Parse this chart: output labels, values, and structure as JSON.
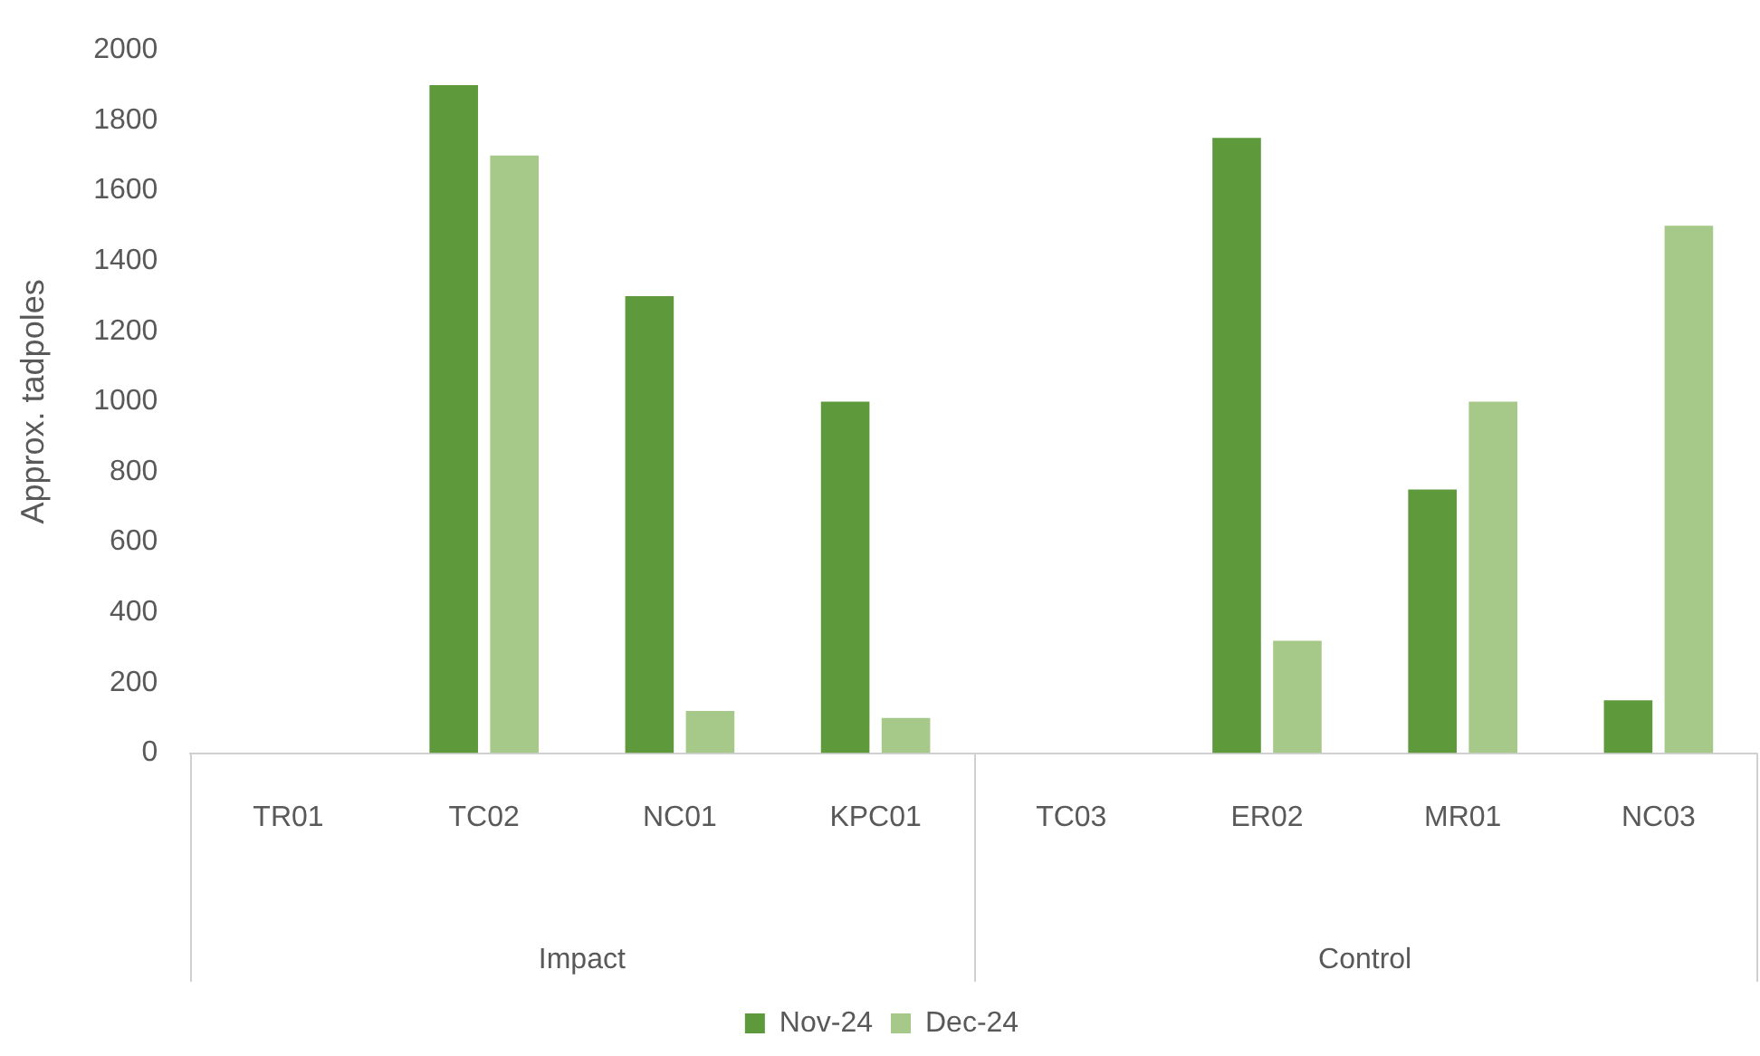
{
  "chart_data": {
    "type": "bar",
    "ylabel": "Approx. tadpoles",
    "categories": [
      "TR01",
      "TC02",
      "NC01",
      "KPC01",
      "TC03",
      "ER02",
      "MR01",
      "NC03"
    ],
    "series": [
      {
        "name": "Nov-24",
        "color": "#5e9a3c",
        "values": [
          0,
          1900,
          1300,
          1000,
          0,
          1750,
          750,
          150
        ]
      },
      {
        "name": "Dec-24",
        "color": "#a6c98a",
        "values": [
          0,
          1700,
          120,
          100,
          0,
          320,
          1000,
          1500
        ]
      }
    ],
    "annotations": [
      "Impact",
      "Control"
    ],
    "ylim": [
      0,
      2000
    ],
    "yticks": [
      0,
      200,
      400,
      600,
      800,
      1000,
      1200,
      1400,
      1600,
      1800,
      2000
    ],
    "grid": false,
    "legend": "bottom"
  }
}
